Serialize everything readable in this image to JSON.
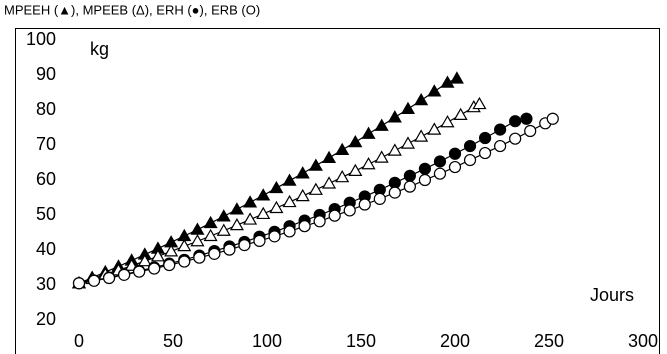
{
  "chart_data": {
    "type": "scatter",
    "title": "MPEEH (▲), MPEEB (Δ), ERH (●), ERB (O)",
    "y_label": "kg",
    "x_label": "Jours",
    "xlim": [
      0,
      300
    ],
    "xticks": [
      0,
      50,
      100,
      150,
      200,
      250,
      300
    ],
    "ylim": [
      20,
      100
    ],
    "yticks": [
      20,
      30,
      40,
      50,
      60,
      70,
      80,
      90,
      100
    ],
    "grid": false,
    "fit_lines": true,
    "series": [
      {
        "name": "MPEEH",
        "color": "#000000",
        "marker": "triangle-filled",
        "x": [
          0,
          7,
          14,
          21,
          28,
          35,
          42,
          49,
          56,
          63,
          70,
          77,
          84,
          91,
          98,
          105,
          112,
          119,
          126,
          133,
          140,
          147,
          154,
          161,
          168,
          175,
          182,
          189,
          196,
          201
        ],
        "values": [
          30.5,
          32.1,
          33.7,
          35.3,
          37.0,
          38.7,
          40.4,
          42.2,
          44.0,
          45.8,
          47.7,
          49.6,
          51.6,
          53.6,
          55.6,
          57.7,
          59.8,
          61.9,
          64.1,
          66.3,
          68.6,
          70.8,
          73.2,
          75.5,
          77.9,
          80.3,
          82.8,
          85.3,
          87.8,
          89
        ]
      },
      {
        "name": "MPEEB",
        "color": "#000000",
        "marker": "triangle-open",
        "x": [
          0,
          7,
          14,
          21,
          28,
          35,
          42,
          49,
          56,
          63,
          70,
          77,
          84,
          91,
          98,
          105,
          112,
          119,
          126,
          133,
          140,
          147,
          154,
          161,
          168,
          175,
          182,
          189,
          196,
          203,
          210,
          213
        ],
        "values": [
          30.5,
          31.7,
          33.0,
          34.2,
          35.5,
          36.8,
          38.2,
          39.6,
          41.1,
          42.5,
          44.0,
          45.5,
          47.1,
          48.7,
          50.3,
          52.0,
          53.7,
          55.4,
          57.2,
          59.0,
          60.8,
          62.6,
          64.5,
          66.4,
          68.4,
          70.4,
          72.4,
          74.4,
          76.5,
          78.6,
          80.8,
          81.7
        ]
      },
      {
        "name": "ERH",
        "color": "#000000",
        "marker": "circle-filled",
        "x": [
          0,
          8,
          16,
          24,
          32,
          40,
          48,
          56,
          64,
          72,
          80,
          88,
          96,
          104,
          112,
          120,
          128,
          136,
          144,
          152,
          160,
          168,
          176,
          184,
          192,
          200,
          208,
          216,
          224,
          232,
          238
        ],
        "values": [
          30.5,
          31.3,
          32.1,
          33.0,
          34.0,
          35.0,
          36.1,
          37.2,
          38.4,
          39.7,
          41.0,
          42.3,
          43.8,
          45.2,
          46.8,
          48.4,
          50.0,
          51.7,
          53.5,
          55.3,
          57.2,
          59.2,
          61.2,
          63.2,
          65.3,
          67.5,
          69.7,
          72.0,
          74.4,
          76.8,
          77.5
        ]
      },
      {
        "name": "ERB",
        "color": "#000000",
        "marker": "circle-open",
        "x": [
          0,
          8,
          16,
          24,
          32,
          40,
          48,
          56,
          64,
          72,
          80,
          88,
          96,
          104,
          112,
          120,
          128,
          136,
          144,
          152,
          160,
          168,
          176,
          184,
          192,
          200,
          208,
          216,
          224,
          232,
          240,
          248,
          252
        ],
        "values": [
          30.5,
          31.2,
          32.0,
          32.9,
          33.8,
          34.7,
          35.7,
          36.7,
          37.8,
          38.9,
          40.1,
          41.4,
          42.6,
          43.9,
          45.3,
          46.8,
          48.2,
          49.8,
          51.3,
          53.0,
          54.6,
          56.4,
          58.1,
          60.0,
          61.8,
          63.7,
          65.7,
          67.7,
          69.7,
          71.8,
          74.0,
          76.2,
          77.5
        ]
      }
    ]
  }
}
